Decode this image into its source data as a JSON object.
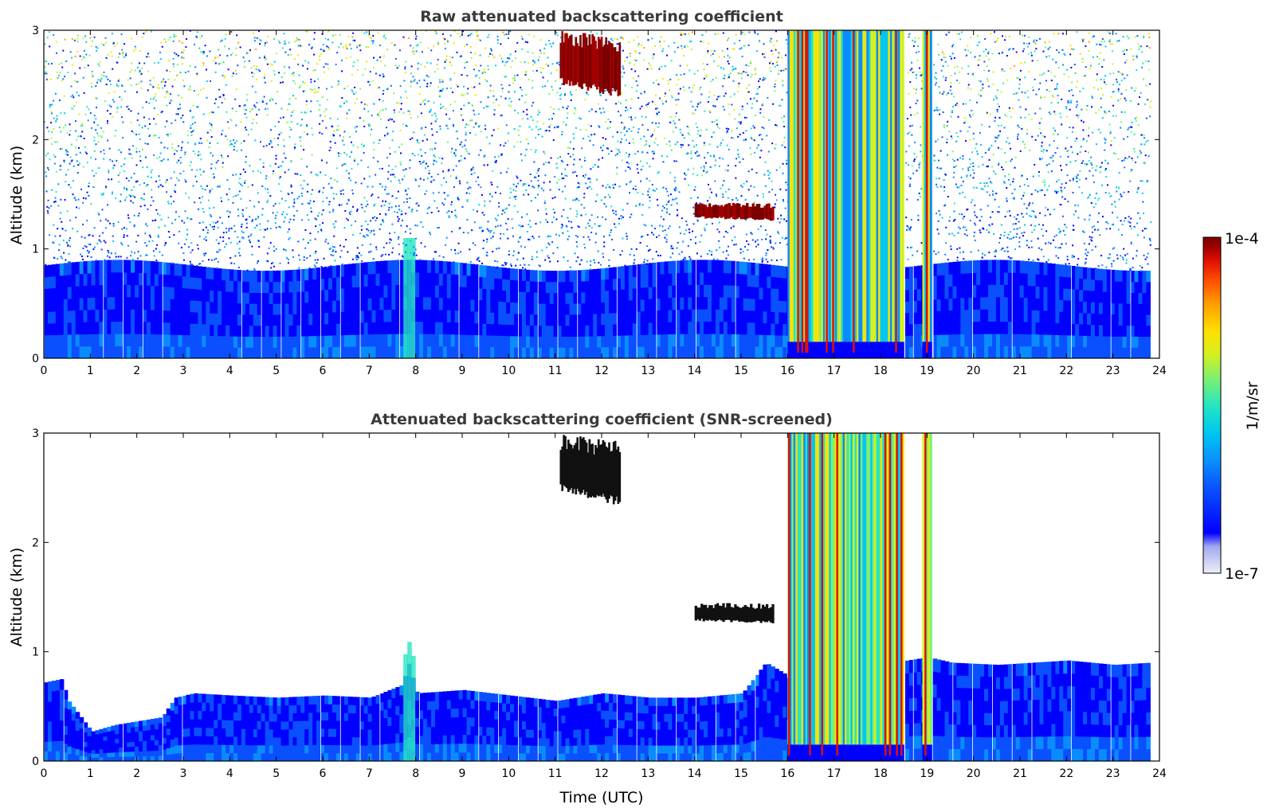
{
  "chart_data": [
    {
      "type": "heatmap",
      "title": "Raw attenuated backscattering coefficient",
      "xlabel": "",
      "ylabel": "Altitude (km)",
      "xlim": [
        0,
        24
      ],
      "ylim": [
        0,
        3
      ],
      "xticks": [
        "0",
        "1",
        "2",
        "3",
        "4",
        "5",
        "6",
        "7",
        "8",
        "9",
        "10",
        "11",
        "12",
        "13",
        "14",
        "15",
        "16",
        "17",
        "18",
        "19",
        "20",
        "21",
        "22",
        "23",
        "24"
      ],
      "yticks": [
        "0",
        "1",
        "2",
        "3"
      ],
      "data_end_hour": 23.8,
      "screened": false,
      "features": [
        {
          "kind": "boundary_layer",
          "top_km": 0.9
        },
        {
          "kind": "noise_above_boundary_layer",
          "to_km": 3
        },
        {
          "kind": "cloud_layer",
          "t_start": 14.0,
          "t_end": 15.7,
          "base_km": 1.28,
          "top_km": 1.43
        },
        {
          "kind": "high_cloud",
          "t_start": 11.1,
          "t_end": 12.4,
          "base_km": 2.5,
          "top_km": 3.0
        },
        {
          "kind": "precipitation",
          "t_start": 16.0,
          "t_end": 18.5
        },
        {
          "kind": "precipitation",
          "t_start": 18.9,
          "t_end": 19.1
        }
      ]
    },
    {
      "type": "heatmap",
      "title": "Attenuated backscattering coefficient (SNR-screened)",
      "xlabel": "Time (UTC)",
      "ylabel": "Altitude (km)",
      "xlim": [
        0,
        24
      ],
      "ylim": [
        0,
        3
      ],
      "xticks": [
        "0",
        "1",
        "2",
        "3",
        "4",
        "5",
        "6",
        "7",
        "8",
        "9",
        "10",
        "11",
        "12",
        "13",
        "14",
        "15",
        "16",
        "17",
        "18",
        "19",
        "20",
        "21",
        "22",
        "23",
        "24"
      ],
      "yticks": [
        "0",
        "1",
        "2",
        "3"
      ],
      "data_end_hour": 23.8,
      "screened": true,
      "boundary_layer_top_km": [
        [
          0,
          0.72
        ],
        [
          0.35,
          0.75
        ],
        [
          0.5,
          0.55
        ],
        [
          1.0,
          0.27
        ],
        [
          1.5,
          0.33
        ],
        [
          2.5,
          0.4
        ],
        [
          2.8,
          0.58
        ],
        [
          3.2,
          0.62
        ],
        [
          4.0,
          0.6
        ],
        [
          5.0,
          0.58
        ],
        [
          6.0,
          0.6
        ],
        [
          7.0,
          0.58
        ],
        [
          7.7,
          0.7
        ],
        [
          7.8,
          0.92
        ],
        [
          8.0,
          0.62
        ],
        [
          9.0,
          0.65
        ],
        [
          10.0,
          0.6
        ],
        [
          11.0,
          0.55
        ],
        [
          12.0,
          0.62
        ],
        [
          13.0,
          0.58
        ],
        [
          14.0,
          0.58
        ],
        [
          15.0,
          0.62
        ],
        [
          15.5,
          0.9
        ],
        [
          15.9,
          0.8
        ],
        [
          16.0,
          0.75
        ],
        [
          19.0,
          0.95
        ],
        [
          19.5,
          0.9
        ],
        [
          20.5,
          0.88
        ],
        [
          22.0,
          0.92
        ],
        [
          23.0,
          0.88
        ],
        [
          23.8,
          0.9
        ]
      ],
      "features": [
        {
          "kind": "cloud_layer",
          "t_start": 14.0,
          "t_end": 15.7,
          "base_km": 1.28,
          "top_km": 1.45
        },
        {
          "kind": "high_cloud",
          "t_start": 11.1,
          "t_end": 12.4,
          "base_km": 2.45,
          "top_km": 3.0
        },
        {
          "kind": "precipitation",
          "t_start": 16.0,
          "t_end": 18.5
        },
        {
          "kind": "precipitation",
          "t_start": 18.9,
          "t_end": 19.1
        }
      ]
    }
  ],
  "colorbar": {
    "max_label": "1e-4",
    "min_label": "1e-7",
    "label": "1/m/sr",
    "colors": [
      "#eef0fa",
      "#c8ccf2",
      "#a0a8ee",
      "#0000ff",
      "#0a50ff",
      "#0a8cff",
      "#00c8f0",
      "#26e6c0",
      "#7ef070",
      "#d4f020",
      "#ffe000",
      "#ffa000",
      "#ff5000",
      "#e01000",
      "#a00000",
      "#7a0000"
    ]
  }
}
